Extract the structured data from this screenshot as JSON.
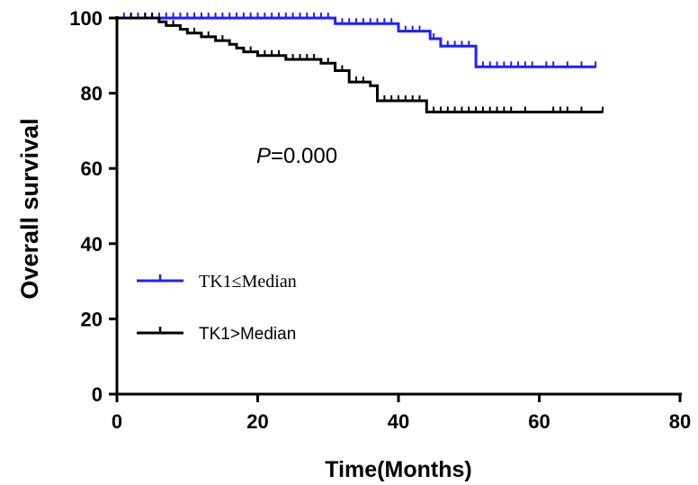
{
  "chart_data": {
    "type": "line",
    "xlabel": "Time(Months)",
    "ylabel": "Overall survival",
    "xlim": [
      0,
      80
    ],
    "ylim": [
      0,
      100
    ],
    "xticks": [
      0,
      20,
      40,
      60,
      80
    ],
    "yticks": [
      0,
      20,
      40,
      60,
      80,
      100
    ],
    "grid": false,
    "legend_position": "left",
    "annotation": {
      "prefix": "P",
      "text": "=0.000",
      "x": 20,
      "y": 64
    },
    "series": [
      {
        "name": "TK1≤Median",
        "color": "#1f1fff",
        "step": [
          [
            0,
            100
          ],
          [
            31,
            100
          ],
          [
            31,
            98.5
          ],
          [
            40,
            98.5
          ],
          [
            40,
            96.5
          ],
          [
            44.5,
            96.5
          ],
          [
            44.5,
            94.5
          ],
          [
            46,
            94.5
          ],
          [
            46,
            92.5
          ],
          [
            51,
            92.5
          ],
          [
            51,
            87
          ],
          [
            68,
            87
          ]
        ],
        "censored": [
          1,
          2,
          3,
          4,
          5,
          6,
          7,
          8,
          9,
          10,
          11,
          12,
          13,
          14,
          15,
          16,
          17,
          18,
          19,
          20,
          21,
          22,
          23,
          24,
          25,
          26,
          27,
          28,
          29,
          30,
          32,
          33,
          34,
          35,
          36,
          37,
          38,
          39,
          41,
          42,
          43,
          45,
          47,
          48,
          49,
          50,
          52,
          53,
          54,
          55,
          56,
          57,
          58,
          59,
          61,
          62,
          64,
          66,
          68
        ]
      },
      {
        "name": "TK1>Median",
        "color": "#000000",
        "step": [
          [
            0,
            100
          ],
          [
            6,
            100
          ],
          [
            6,
            99
          ],
          [
            7,
            99
          ],
          [
            7,
            98
          ],
          [
            9,
            98
          ],
          [
            9,
            97
          ],
          [
            10,
            97
          ],
          [
            10,
            96
          ],
          [
            12,
            96
          ],
          [
            12,
            95
          ],
          [
            14,
            95
          ],
          [
            14,
            94
          ],
          [
            16,
            94
          ],
          [
            16,
            93
          ],
          [
            17,
            93
          ],
          [
            17,
            92
          ],
          [
            18,
            92
          ],
          [
            18,
            91
          ],
          [
            20,
            91
          ],
          [
            20,
            90
          ],
          [
            24,
            90
          ],
          [
            24,
            89
          ],
          [
            29,
            89
          ],
          [
            29,
            88
          ],
          [
            31,
            88
          ],
          [
            31,
            86
          ],
          [
            33,
            86
          ],
          [
            33,
            83
          ],
          [
            36,
            83
          ],
          [
            36,
            82
          ],
          [
            37,
            82
          ],
          [
            37,
            78
          ],
          [
            44,
            78
          ],
          [
            44,
            75
          ],
          [
            69,
            75
          ]
        ],
        "censored": [
          2,
          4,
          5,
          8,
          11,
          13,
          15,
          19,
          21,
          22,
          23,
          25,
          26,
          27,
          28,
          30,
          32,
          34,
          35,
          38,
          39,
          40,
          41,
          42,
          43,
          45,
          46,
          47,
          48,
          49,
          50,
          51,
          52,
          53,
          54,
          55,
          56,
          58,
          62,
          63,
          64,
          66,
          69
        ]
      }
    ]
  }
}
